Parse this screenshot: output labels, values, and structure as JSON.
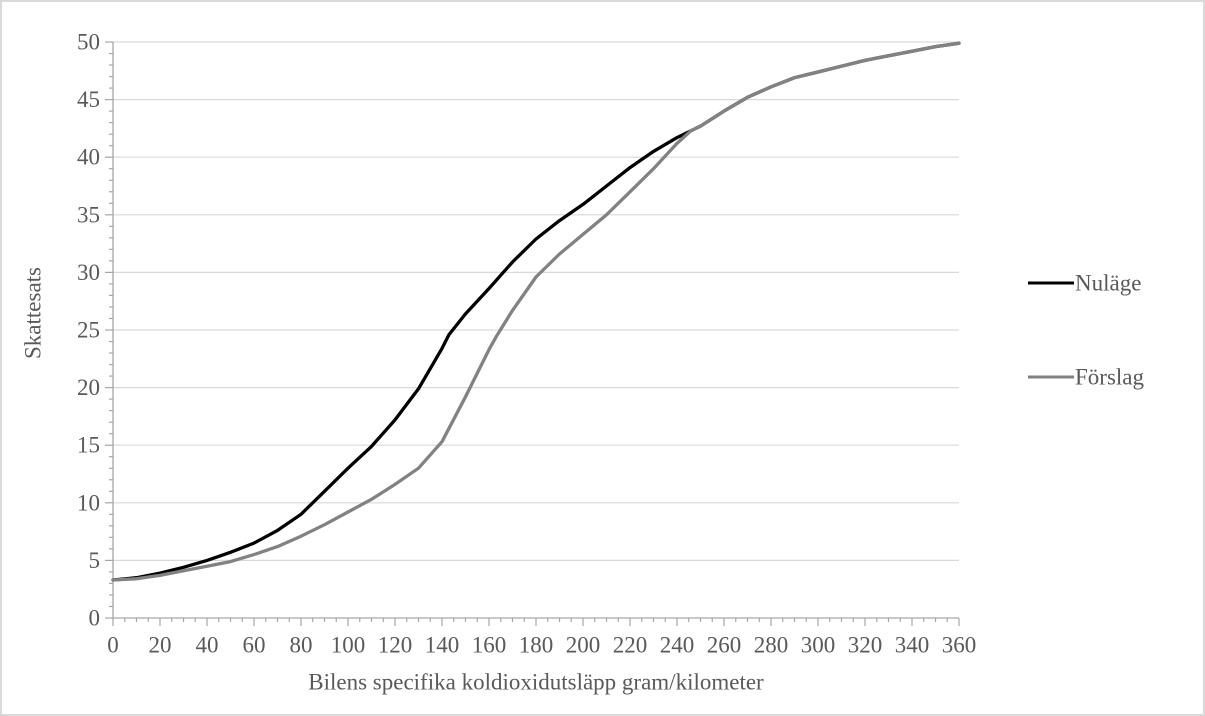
{
  "chart_data": {
    "type": "line",
    "title": "",
    "xlabel": "Bilens specifika koldioxidutsläpp gram/kilometer",
    "ylabel": "Skattesats",
    "xlim": [
      0,
      360
    ],
    "ylim": [
      0,
      50
    ],
    "x_major_ticks": [
      0,
      20,
      40,
      60,
      80,
      100,
      120,
      140,
      160,
      180,
      200,
      220,
      240,
      260,
      280,
      300,
      320,
      340,
      360
    ],
    "x_minor_step": 5,
    "y_major_ticks": [
      0,
      5,
      10,
      15,
      20,
      25,
      30,
      35,
      40,
      45,
      50
    ],
    "y_minor_step": 1,
    "grid": "horizontal-major-only",
    "legend_position": "right",
    "series": [
      {
        "name": "Nuläge",
        "color": "#000000",
        "points": [
          [
            0,
            3.3
          ],
          [
            10,
            3.5
          ],
          [
            20,
            3.9
          ],
          [
            30,
            4.4
          ],
          [
            40,
            5.0
          ],
          [
            50,
            5.7
          ],
          [
            60,
            6.5
          ],
          [
            70,
            7.6
          ],
          [
            80,
            9.0
          ],
          [
            90,
            11.0
          ],
          [
            100,
            13.0
          ],
          [
            110,
            14.9
          ],
          [
            120,
            17.2
          ],
          [
            130,
            19.9
          ],
          [
            140,
            23.4
          ],
          [
            143,
            24.6
          ],
          [
            150,
            26.4
          ],
          [
            160,
            28.6
          ],
          [
            170,
            30.9
          ],
          [
            180,
            32.9
          ],
          [
            190,
            34.5
          ],
          [
            200,
            35.9
          ],
          [
            210,
            37.5
          ],
          [
            220,
            39.1
          ],
          [
            230,
            40.5
          ],
          [
            240,
            41.7
          ],
          [
            246,
            42.3
          ],
          [
            250,
            42.7
          ],
          [
            260,
            44.0
          ],
          [
            270,
            45.2
          ],
          [
            280,
            46.1
          ],
          [
            290,
            46.9
          ],
          [
            300,
            47.4
          ],
          [
            310,
            47.9
          ],
          [
            320,
            48.4
          ],
          [
            330,
            48.8
          ],
          [
            340,
            49.2
          ],
          [
            350,
            49.6
          ],
          [
            360,
            49.9
          ]
        ]
      },
      {
        "name": "Förslag",
        "color": "#828282",
        "points": [
          [
            0,
            3.3
          ],
          [
            10,
            3.4
          ],
          [
            20,
            3.7
          ],
          [
            30,
            4.1
          ],
          [
            40,
            4.5
          ],
          [
            50,
            4.9
          ],
          [
            60,
            5.5
          ],
          [
            70,
            6.2
          ],
          [
            80,
            7.1
          ],
          [
            90,
            8.1
          ],
          [
            100,
            9.2
          ],
          [
            110,
            10.3
          ],
          [
            120,
            11.6
          ],
          [
            130,
            13.0
          ],
          [
            140,
            15.3
          ],
          [
            150,
            19.2
          ],
          [
            160,
            23.3
          ],
          [
            163,
            24.4
          ],
          [
            170,
            26.7
          ],
          [
            180,
            29.6
          ],
          [
            190,
            31.6
          ],
          [
            200,
            33.3
          ],
          [
            210,
            35.0
          ],
          [
            220,
            37.0
          ],
          [
            230,
            39.0
          ],
          [
            240,
            41.2
          ],
          [
            246,
            42.3
          ],
          [
            250,
            42.7
          ],
          [
            260,
            44.0
          ],
          [
            270,
            45.2
          ],
          [
            280,
            46.1
          ],
          [
            290,
            46.9
          ],
          [
            300,
            47.4
          ],
          [
            310,
            47.9
          ],
          [
            320,
            48.4
          ],
          [
            330,
            48.8
          ],
          [
            340,
            49.2
          ],
          [
            350,
            49.6
          ],
          [
            360,
            49.9
          ]
        ]
      }
    ]
  },
  "colors": {
    "background": "#ffffff",
    "axis": "#a6a6a6",
    "gridline": "#d9d9d9",
    "tick_label": "#595959",
    "frame_border": "#d9d9d9"
  }
}
